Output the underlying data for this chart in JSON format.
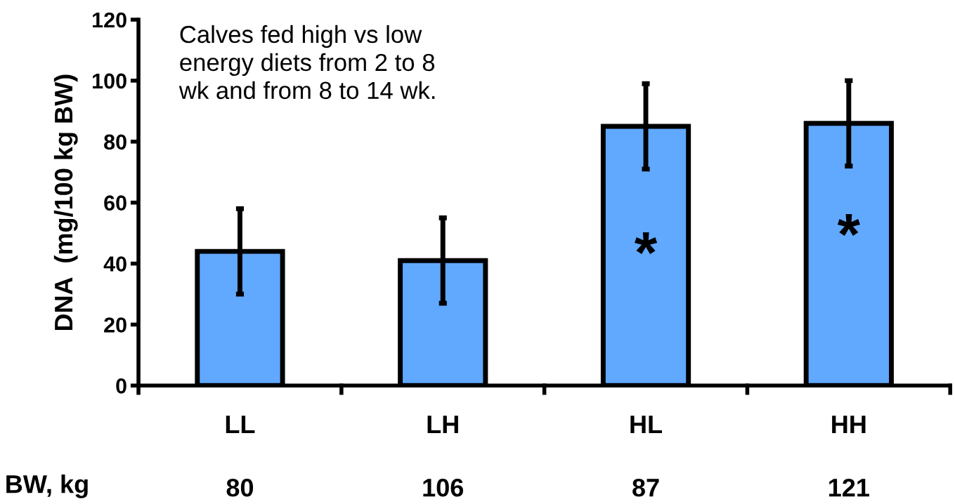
{
  "chart_data": {
    "type": "bar",
    "ylabel": "DNA  (mg/100 kg BW)",
    "xlabel": "BW, kg",
    "categories": [
      "LL",
      "LH",
      "HL",
      "HH"
    ],
    "values": [
      44,
      41,
      85,
      86
    ],
    "errors": [
      14,
      14,
      14,
      14
    ],
    "color": "#61a8ff",
    "ylim": [
      0,
      120
    ],
    "yticks": [
      0,
      20,
      40,
      60,
      80,
      100,
      120
    ],
    "grid": false,
    "annotations": [
      "Calves fed high vs low\nenergy diets from 2 to 8\nwk and from 8 to 14 wk.",
      "*",
      "*",
      "80",
      "106",
      "87",
      "121"
    ]
  }
}
